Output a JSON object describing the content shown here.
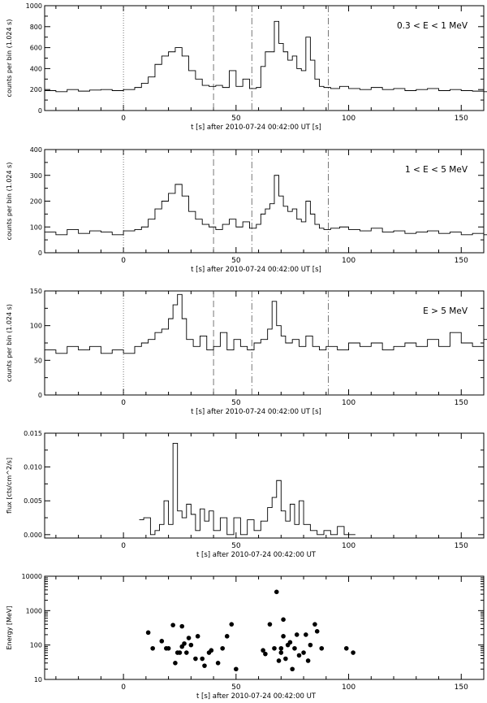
{
  "chart_data": [
    {
      "type": "line",
      "step": true,
      "xlabel": "t [s] after 2010-07-24 00:42:00 UT [s]",
      "ylabel": "counts per bin (1.024 s)",
      "annotation": "0.3 < E < 1 MeV",
      "xlim": [
        -35,
        160
      ],
      "ylim": [
        0,
        1000
      ],
      "xticks": [
        0,
        50,
        100,
        150
      ],
      "yticks": [
        0,
        200,
        400,
        600,
        800,
        1000
      ],
      "vlines": [
        {
          "x": 0,
          "style": "dotted"
        },
        {
          "x": 40,
          "style": "dashed"
        },
        {
          "x": 57,
          "style": "dashdot"
        },
        {
          "x": 91,
          "style": "dashdot"
        }
      ],
      "x": [
        -35,
        -30,
        -25,
        -20,
        -15,
        -10,
        -5,
        0,
        5,
        8,
        11,
        14,
        17,
        20,
        23,
        26,
        29,
        32,
        35,
        38,
        41,
        44,
        47,
        50,
        53,
        56,
        59,
        61,
        63,
        65,
        67,
        69,
        71,
        73,
        75,
        77,
        79,
        81,
        83,
        85,
        87,
        89,
        92,
        96,
        100,
        105,
        110,
        115,
        120,
        125,
        130,
        135,
        140,
        145,
        150,
        155,
        160
      ],
      "values": [
        190,
        180,
        200,
        185,
        195,
        200,
        190,
        200,
        220,
        260,
        320,
        440,
        520,
        560,
        600,
        520,
        380,
        300,
        240,
        230,
        240,
        220,
        380,
        230,
        300,
        210,
        220,
        420,
        560,
        560,
        850,
        640,
        560,
        480,
        520,
        400,
        380,
        700,
        480,
        300,
        230,
        220,
        210,
        230,
        210,
        200,
        220,
        200,
        210,
        190,
        200,
        210,
        190,
        200,
        190,
        185,
        180
      ]
    },
    {
      "type": "line",
      "step": true,
      "xlabel": "t [s] after 2010-07-24 00:42:00 UT [s]",
      "ylabel": "counts per bin (1.024 s)",
      "annotation": "1 < E < 5 MeV",
      "xlim": [
        -35,
        160
      ],
      "ylim": [
        0,
        400
      ],
      "xticks": [
        0,
        50,
        100,
        150
      ],
      "yticks": [
        0,
        100,
        200,
        300,
        400
      ],
      "vlines": [
        {
          "x": 0,
          "style": "dotted"
        },
        {
          "x": 40,
          "style": "dashed"
        },
        {
          "x": 57,
          "style": "dashdot"
        },
        {
          "x": 91,
          "style": "dashdot"
        }
      ],
      "x": [
        -35,
        -30,
        -25,
        -20,
        -15,
        -10,
        -5,
        0,
        5,
        8,
        11,
        14,
        17,
        20,
        23,
        26,
        29,
        32,
        35,
        38,
        41,
        44,
        47,
        50,
        53,
        56,
        59,
        61,
        63,
        65,
        67,
        69,
        71,
        73,
        75,
        77,
        79,
        81,
        83,
        85,
        87,
        89,
        92,
        96,
        100,
        105,
        110,
        115,
        120,
        125,
        130,
        135,
        140,
        145,
        150,
        155,
        160
      ],
      "values": [
        80,
        70,
        90,
        75,
        85,
        80,
        70,
        85,
        90,
        100,
        130,
        170,
        200,
        230,
        265,
        220,
        160,
        130,
        110,
        100,
        90,
        110,
        130,
        100,
        120,
        95,
        110,
        150,
        170,
        190,
        300,
        220,
        180,
        160,
        170,
        130,
        120,
        200,
        150,
        110,
        95,
        90,
        95,
        100,
        90,
        85,
        95,
        80,
        85,
        75,
        80,
        85,
        75,
        80,
        70,
        75,
        70
      ]
    },
    {
      "type": "line",
      "step": true,
      "xlabel": "t [s] after 2010-07-24 00:42:00 UT [s]",
      "ylabel": "counts per bin (1.024 s)",
      "annotation": "E > 5 MeV",
      "xlim": [
        -35,
        160
      ],
      "ylim": [
        0,
        150
      ],
      "xticks": [
        0,
        50,
        100,
        150
      ],
      "yticks": [
        0,
        50,
        100,
        150
      ],
      "vlines": [
        {
          "x": 0,
          "style": "dotted"
        },
        {
          "x": 40,
          "style": "dashed"
        },
        {
          "x": 57,
          "style": "dashdot"
        },
        {
          "x": 91,
          "style": "dashdot"
        }
      ],
      "x": [
        -35,
        -30,
        -25,
        -20,
        -15,
        -10,
        -5,
        0,
        5,
        8,
        11,
        14,
        17,
        20,
        22,
        24,
        26,
        28,
        31,
        34,
        37,
        40,
        43,
        46,
        49,
        52,
        55,
        58,
        61,
        64,
        66,
        68,
        70,
        72,
        75,
        78,
        81,
        84,
        87,
        90,
        95,
        100,
        105,
        110,
        115,
        120,
        125,
        130,
        135,
        140,
        145,
        150,
        155,
        160
      ],
      "values": [
        65,
        60,
        70,
        65,
        70,
        60,
        65,
        60,
        70,
        75,
        80,
        90,
        95,
        110,
        130,
        145,
        110,
        80,
        70,
        85,
        65,
        70,
        90,
        65,
        80,
        70,
        65,
        75,
        80,
        95,
        135,
        100,
        85,
        75,
        80,
        70,
        85,
        70,
        65,
        70,
        65,
        75,
        70,
        75,
        65,
        70,
        75,
        70,
        80,
        70,
        90,
        75,
        70,
        80
      ]
    },
    {
      "type": "line",
      "step": true,
      "xlabel": "t [s] after 2010-07-24 00:42:00 UT",
      "ylabel": "flux [cts/cm^2/s]",
      "xlim": [
        -35,
        160
      ],
      "ylim": [
        -0.0005,
        0.015
      ],
      "xticks": [
        0,
        50,
        100,
        150
      ],
      "yticks": [
        0.0,
        0.005,
        0.01,
        0.015
      ],
      "ytick_labels": [
        "0.000",
        "0.005",
        "0.010",
        "0.015"
      ],
      "x": [
        7,
        9,
        12,
        14,
        16,
        18,
        20,
        22,
        24,
        26,
        28,
        30,
        32,
        34,
        36,
        38,
        40,
        43,
        46,
        49,
        52,
        55,
        58,
        61,
        64,
        66,
        68,
        70,
        72,
        74,
        76,
        78,
        80,
        83,
        86,
        89,
        92,
        95,
        98,
        101
      ],
      "values": [
        0.0022,
        0.0025,
        0.0,
        0.0006,
        0.0015,
        0.005,
        0.0015,
        0.0135,
        0.0035,
        0.0025,
        0.0045,
        0.003,
        0.0006,
        0.0038,
        0.002,
        0.0035,
        0.0006,
        0.0025,
        0.0,
        0.0025,
        0.0,
        0.0022,
        0.0006,
        0.002,
        0.004,
        0.0055,
        0.008,
        0.0035,
        0.002,
        0.0045,
        0.0015,
        0.005,
        0.0015,
        0.0006,
        0.0,
        0.0006,
        0.0,
        0.0012,
        0.0,
        0.0
      ]
    },
    {
      "type": "scatter",
      "xlabel": "t [s] after 2010-07-24 00:42:00 UT",
      "ylabel": "Energy [MeV]",
      "yscale": "log",
      "xlim": [
        -35,
        160
      ],
      "ylim": [
        10,
        10000
      ],
      "xticks": [
        0,
        50,
        100,
        150
      ],
      "yticks": [
        10,
        100,
        1000,
        10000
      ],
      "points": [
        [
          11,
          230
        ],
        [
          13,
          80
        ],
        [
          17,
          130
        ],
        [
          19,
          80
        ],
        [
          20,
          80
        ],
        [
          22,
          380
        ],
        [
          23,
          30
        ],
        [
          24,
          60
        ],
        [
          25,
          60
        ],
        [
          26,
          350
        ],
        [
          26,
          90
        ],
        [
          27,
          110
        ],
        [
          28,
          60
        ],
        [
          29,
          160
        ],
        [
          30,
          100
        ],
        [
          32,
          40
        ],
        [
          33,
          180
        ],
        [
          35,
          40
        ],
        [
          36,
          25
        ],
        [
          38,
          60
        ],
        [
          39,
          70
        ],
        [
          42,
          30
        ],
        [
          44,
          80
        ],
        [
          46,
          180
        ],
        [
          48,
          400
        ],
        [
          50,
          20
        ],
        [
          62,
          70
        ],
        [
          63,
          55
        ],
        [
          65,
          400
        ],
        [
          67,
          80
        ],
        [
          68,
          3500
        ],
        [
          69,
          35
        ],
        [
          70,
          80
        ],
        [
          70,
          60
        ],
        [
          71,
          550
        ],
        [
          71,
          180
        ],
        [
          72,
          40
        ],
        [
          73,
          100
        ],
        [
          74,
          120
        ],
        [
          75,
          20
        ],
        [
          76,
          80
        ],
        [
          77,
          200
        ],
        [
          78,
          50
        ],
        [
          80,
          60
        ],
        [
          81,
          200
        ],
        [
          82,
          35
        ],
        [
          83,
          100
        ],
        [
          85,
          400
        ],
        [
          86,
          250
        ],
        [
          88,
          80
        ],
        [
          99,
          80
        ],
        [
          102,
          60
        ]
      ]
    }
  ]
}
